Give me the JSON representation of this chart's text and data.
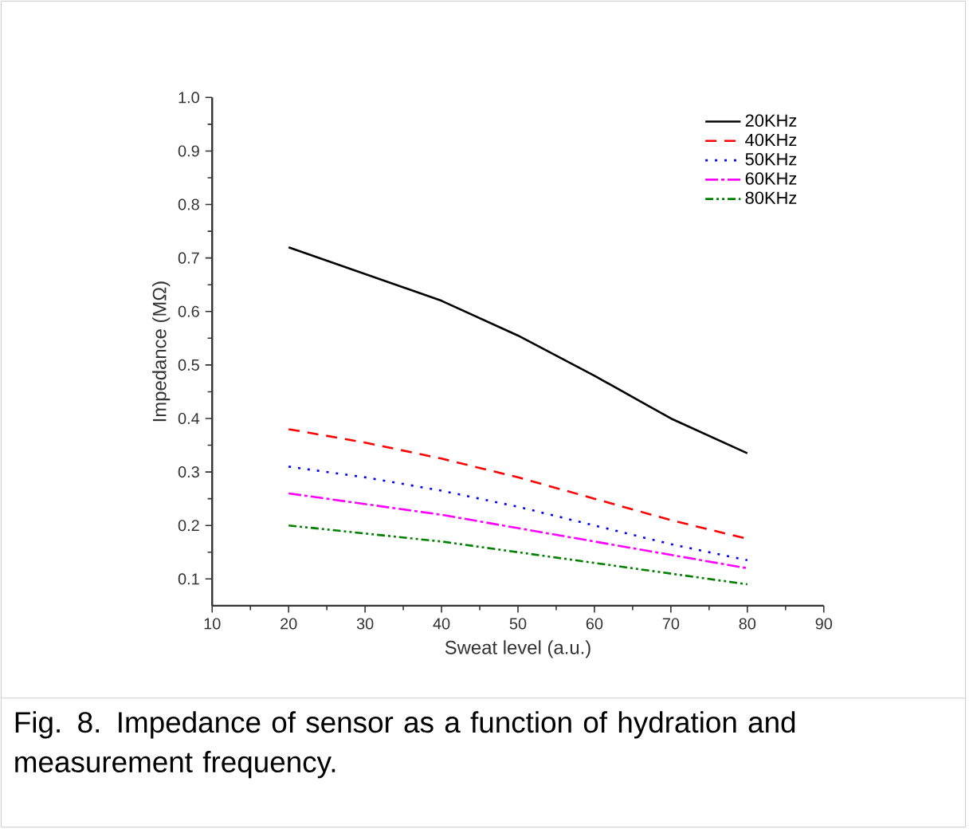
{
  "chart_data": {
    "type": "line",
    "xlabel": "Sweat level (a.u.)",
    "ylabel": "Impedance (MΩ)",
    "x": [
      20,
      30,
      40,
      50,
      60,
      70,
      80
    ],
    "series": [
      {
        "name": "20KHz",
        "color": "#000000",
        "line_style": "solid",
        "values": [
          0.72,
          0.67,
          0.62,
          0.555,
          0.48,
          0.4,
          0.335
        ]
      },
      {
        "name": "40KHz",
        "color": "#ff0000",
        "line_style": "dashed",
        "values": [
          0.38,
          0.355,
          0.325,
          0.29,
          0.25,
          0.21,
          0.175
        ]
      },
      {
        "name": "50KHz",
        "color": "#0000ff",
        "line_style": "dotted",
        "values": [
          0.31,
          0.29,
          0.265,
          0.235,
          0.2,
          0.165,
          0.135
        ]
      },
      {
        "name": "60KHz",
        "color": "#ff00ff",
        "line_style": "dashdot",
        "values": [
          0.26,
          0.24,
          0.22,
          0.195,
          0.17,
          0.145,
          0.12
        ]
      },
      {
        "name": "80KHz",
        "color": "#008000",
        "line_style": "dashdotdot",
        "values": [
          0.2,
          0.185,
          0.17,
          0.15,
          0.13,
          0.11,
          0.09
        ]
      }
    ],
    "xlim": [
      10,
      90
    ],
    "ylim": [
      0.05,
      1.0
    ],
    "xticks": [
      10,
      20,
      30,
      40,
      50,
      60,
      70,
      80,
      90
    ],
    "yticks": [
      0.1,
      0.2,
      0.3,
      0.4,
      0.5,
      0.6,
      0.7,
      0.8,
      0.9,
      {
        "value": 1.0,
        "label": "1.0"
      }
    ],
    "grid": false,
    "legend": "top right",
    "marker": "none",
    "annotations": [
      "Fig. 8.  Impedance of sensor as a function of hydration and measurement frequency."
    ]
  }
}
